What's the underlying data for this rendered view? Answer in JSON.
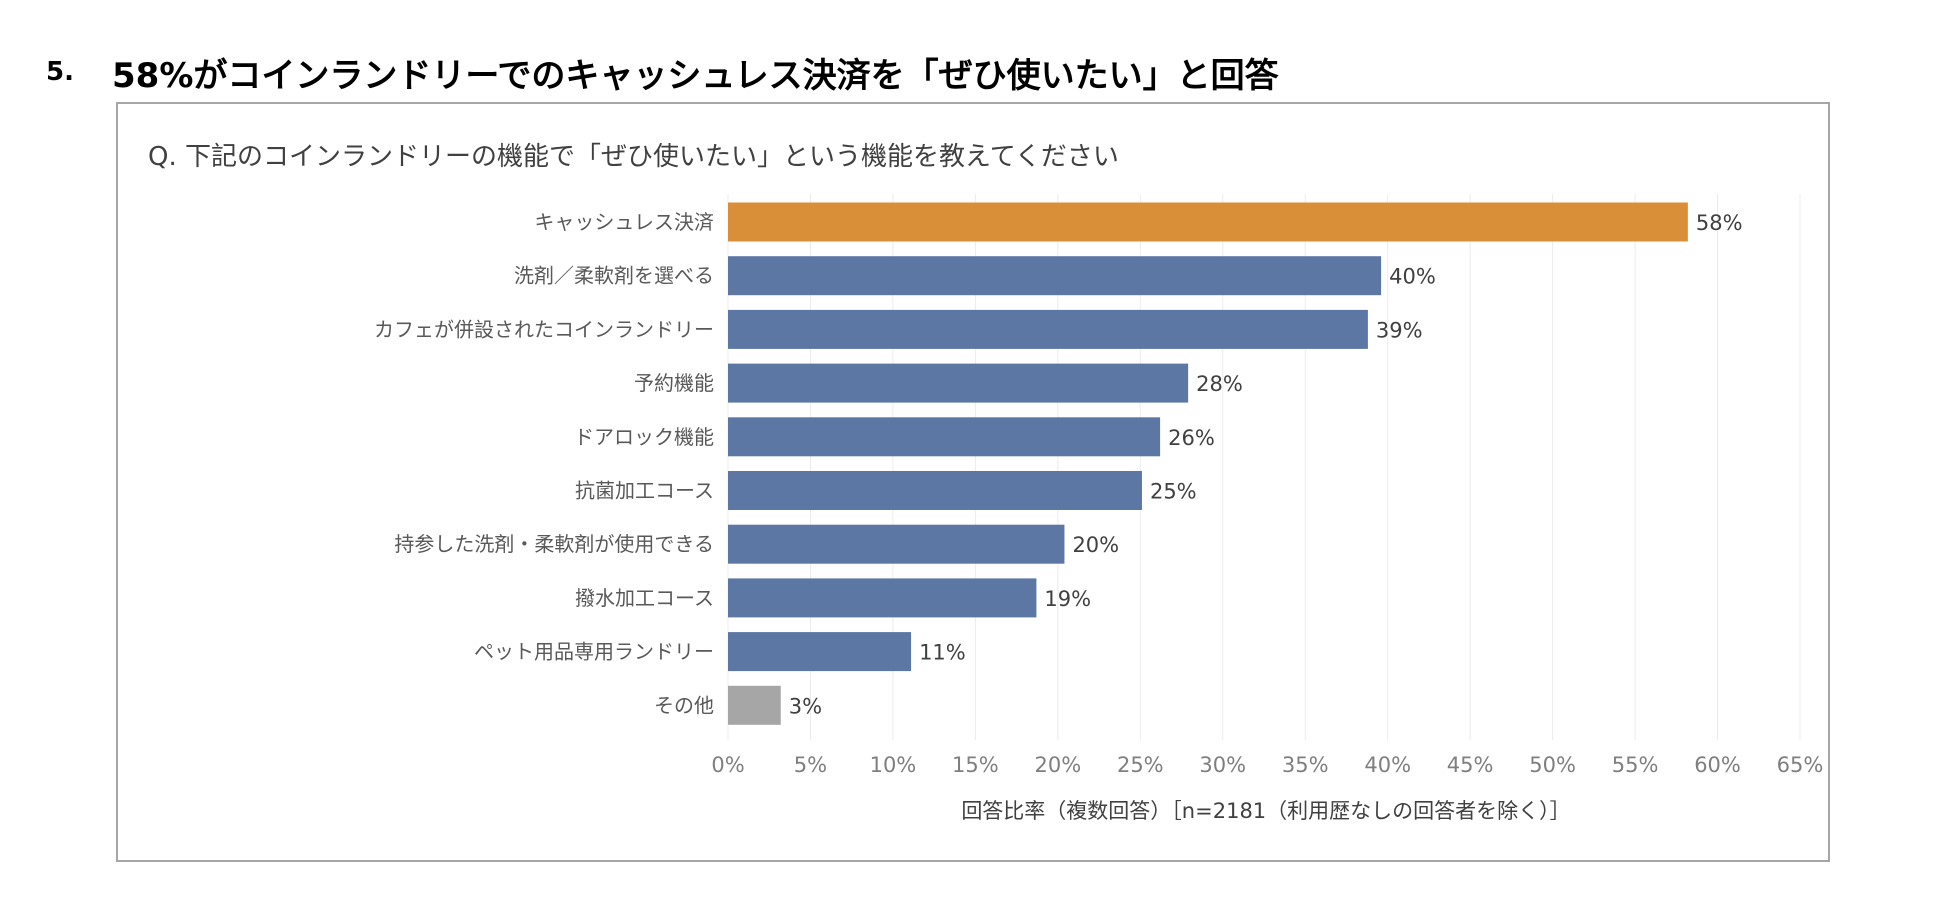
{
  "heading": {
    "number": "5.",
    "text": "58%がコインランドリーでのキャッシュレス決済を「ぜひ使いたい」と回答"
  },
  "chart_data": {
    "type": "bar",
    "orientation": "horizontal",
    "title": "Q. 下記のコインランドリーの機能で「ぜひ使いたい」という機能を教えてください",
    "xlabel": "回答比率（複数回答）［n=2181（利用歴なしの回答者を除く）］",
    "ylabel": "",
    "xlim": [
      0,
      65
    ],
    "x_ticks": [
      0,
      5,
      10,
      15,
      20,
      25,
      30,
      35,
      40,
      45,
      50,
      55,
      60,
      65
    ],
    "x_tick_labels": [
      "0%",
      "5%",
      "10%",
      "15%",
      "20%",
      "25%",
      "30%",
      "35%",
      "40%",
      "45%",
      "50%",
      "55%",
      "60%",
      "65%"
    ],
    "grid": true,
    "categories": [
      "キャッシュレス決済",
      "洗剤／柔軟剤を選べる",
      "カフェが併設されたコインランドリー",
      "予約機能",
      "ドアロック機能",
      "抗菌加工コース",
      "持参した洗剤・柔軟剤が使用できる",
      "撥水加工コース",
      "ペット用品専用ランドリー",
      "その他"
    ],
    "values": [
      58.2,
      39.6,
      38.8,
      27.9,
      26.2,
      25.1,
      20.4,
      18.7,
      11.1,
      3.2
    ],
    "value_labels": [
      "58%",
      "40%",
      "39%",
      "28%",
      "26%",
      "25%",
      "20%",
      "19%",
      "11%",
      "3%"
    ],
    "colors": [
      "#d98e38",
      "#5d77a4",
      "#5d77a4",
      "#5d77a4",
      "#5d77a4",
      "#5d77a4",
      "#5d77a4",
      "#5d77a4",
      "#5d77a4",
      "#a6a6a6"
    ]
  }
}
